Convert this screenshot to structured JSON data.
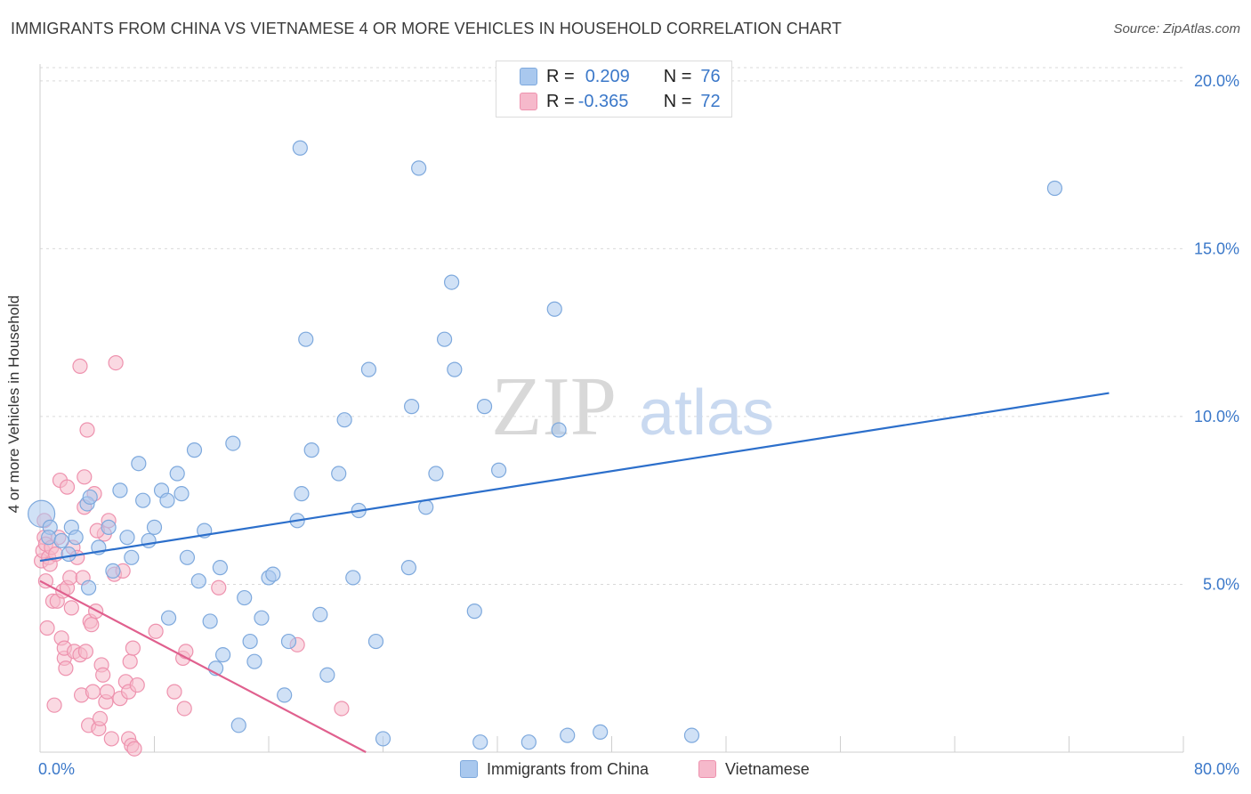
{
  "title": "IMMIGRANTS FROM CHINA VS VIETNAMESE 4 OR MORE VEHICLES IN HOUSEHOLD CORRELATION CHART",
  "source": "Source: ZipAtlas.com",
  "watermark": {
    "zip": "ZIP",
    "atlas": "atlas"
  },
  "legend": {
    "rows": [
      {
        "r_label": "R =",
        "r_value": "0.209",
        "n_label": "N =",
        "n_value": "76"
      },
      {
        "r_label": "R =",
        "r_value": "-0.365",
        "n_label": "N =",
        "n_value": "72"
      }
    ]
  },
  "colors": {
    "china_fill": "#a9c8ee",
    "china_stroke": "#7ea9dd",
    "china_line": "#2c6fcb",
    "viet_fill": "#f6b9cb",
    "viet_stroke": "#ee92ae",
    "viet_line": "#e0608e",
    "axis_text": "#3b78c9",
    "grid": "#d9d9d9"
  },
  "chart_data": {
    "type": "scatter",
    "title": "IMMIGRANTS FROM CHINA VS VIETNAMESE 4 OR MORE VEHICLES IN HOUSEHOLD CORRELATION CHART",
    "xlabel": "",
    "ylabel": "4 or more Vehicles in Household",
    "xlim": [
      0,
      80
    ],
    "ylim": [
      0,
      20.5
    ],
    "x_tick_labels": [
      "0.0%",
      "80.0%"
    ],
    "y_tick_labels": [
      "5.0%",
      "10.0%",
      "15.0%",
      "20.0%"
    ],
    "y_ticks": [
      5,
      10,
      15,
      20
    ],
    "grid": true,
    "legend_position": "bottom",
    "series": [
      {
        "name": "Immigrants from China",
        "stats": {
          "R": 0.209,
          "N": 76
        },
        "trend": {
          "x": [
            0,
            74.8
          ],
          "y": [
            5.7,
            10.7
          ]
        },
        "points": [
          [
            0.1,
            7.1
          ],
          [
            0.7,
            6.7
          ],
          [
            0.6,
            6.4
          ],
          [
            1.5,
            6.3
          ],
          [
            2.2,
            6.7
          ],
          [
            2.5,
            6.4
          ],
          [
            2.0,
            5.9
          ],
          [
            3.3,
            7.4
          ],
          [
            3.5,
            7.6
          ],
          [
            4.1,
            6.1
          ],
          [
            4.8,
            6.7
          ],
          [
            5.1,
            5.4
          ],
          [
            3.4,
            4.9
          ],
          [
            5.6,
            7.8
          ],
          [
            6.1,
            6.4
          ],
          [
            6.4,
            5.8
          ],
          [
            6.9,
            8.6
          ],
          [
            7.2,
            7.5
          ],
          [
            7.6,
            6.3
          ],
          [
            8.0,
            6.7
          ],
          [
            8.5,
            7.8
          ],
          [
            8.9,
            7.5
          ],
          [
            9.6,
            8.3
          ],
          [
            9.0,
            4.0
          ],
          [
            9.9,
            7.7
          ],
          [
            10.3,
            5.8
          ],
          [
            10.8,
            9.0
          ],
          [
            11.1,
            5.1
          ],
          [
            11.5,
            6.6
          ],
          [
            11.9,
            3.9
          ],
          [
            12.3,
            2.5
          ],
          [
            12.6,
            5.5
          ],
          [
            12.8,
            2.9
          ],
          [
            13.5,
            9.2
          ],
          [
            13.9,
            0.8
          ],
          [
            14.3,
            4.6
          ],
          [
            14.7,
            3.3
          ],
          [
            15.0,
            2.7
          ],
          [
            15.5,
            4.0
          ],
          [
            16.0,
            5.2
          ],
          [
            16.3,
            5.3
          ],
          [
            17.1,
            1.7
          ],
          [
            17.4,
            3.3
          ],
          [
            18.0,
            6.9
          ],
          [
            18.3,
            7.7
          ],
          [
            18.6,
            12.3
          ],
          [
            19.0,
            9.0
          ],
          [
            19.6,
            4.1
          ],
          [
            20.1,
            2.3
          ],
          [
            20.9,
            8.3
          ],
          [
            21.3,
            9.9
          ],
          [
            21.9,
            5.2
          ],
          [
            22.3,
            7.2
          ],
          [
            23.0,
            11.4
          ],
          [
            23.5,
            3.3
          ],
          [
            24.0,
            0.4
          ],
          [
            25.8,
            5.5
          ],
          [
            26.0,
            10.3
          ],
          [
            27.0,
            7.3
          ],
          [
            27.7,
            8.3
          ],
          [
            28.3,
            12.3
          ],
          [
            28.8,
            14.0
          ],
          [
            29.0,
            11.4
          ],
          [
            30.4,
            4.2
          ],
          [
            30.8,
            0.3
          ],
          [
            31.1,
            10.3
          ],
          [
            32.1,
            8.4
          ],
          [
            34.2,
            0.3
          ],
          [
            36.0,
            13.2
          ],
          [
            36.3,
            9.6
          ],
          [
            36.9,
            0.5
          ],
          [
            39.2,
            0.6
          ],
          [
            45.6,
            0.5
          ],
          [
            71.0,
            16.8
          ],
          [
            18.2,
            18.0
          ],
          [
            26.5,
            17.4
          ]
        ]
      },
      {
        "name": "Vietnamese",
        "stats": {
          "R": -0.365,
          "N": 72
        },
        "trend": {
          "x": [
            0,
            22.8
          ],
          "y": [
            5.1,
            0
          ]
        },
        "points": [
          [
            0.1,
            5.7
          ],
          [
            0.2,
            6.0
          ],
          [
            0.3,
            6.4
          ],
          [
            0.4,
            5.1
          ],
          [
            0.4,
            6.2
          ],
          [
            0.6,
            5.8
          ],
          [
            0.7,
            5.6
          ],
          [
            0.8,
            6.1
          ],
          [
            0.9,
            4.5
          ],
          [
            1.0,
            1.4
          ],
          [
            1.1,
            5.9
          ],
          [
            1.2,
            4.5
          ],
          [
            1.3,
            6.4
          ],
          [
            1.5,
            3.4
          ],
          [
            1.6,
            4.8
          ],
          [
            1.7,
            2.8
          ],
          [
            1.7,
            3.1
          ],
          [
            1.8,
            2.5
          ],
          [
            1.9,
            4.9
          ],
          [
            2.1,
            5.2
          ],
          [
            2.3,
            6.1
          ],
          [
            2.4,
            3.0
          ],
          [
            2.6,
            5.8
          ],
          [
            2.8,
            2.9
          ],
          [
            2.8,
            11.5
          ],
          [
            2.9,
            1.7
          ],
          [
            3.1,
            7.3
          ],
          [
            3.1,
            8.2
          ],
          [
            3.2,
            3.0
          ],
          [
            3.3,
            9.6
          ],
          [
            3.4,
            0.8
          ],
          [
            3.5,
            3.9
          ],
          [
            3.6,
            3.8
          ],
          [
            3.7,
            1.8
          ],
          [
            3.8,
            7.7
          ],
          [
            3.9,
            4.2
          ],
          [
            4.1,
            0.7
          ],
          [
            4.2,
            1.0
          ],
          [
            4.3,
            2.6
          ],
          [
            4.4,
            2.3
          ],
          [
            4.5,
            6.5
          ],
          [
            4.6,
            1.5
          ],
          [
            4.7,
            1.8
          ],
          [
            4.8,
            6.9
          ],
          [
            5.0,
            0.4
          ],
          [
            5.2,
            5.3
          ],
          [
            5.3,
            11.6
          ],
          [
            5.6,
            1.6
          ],
          [
            5.8,
            5.4
          ],
          [
            6.0,
            2.1
          ],
          [
            6.2,
            1.8
          ],
          [
            6.2,
            0.4
          ],
          [
            6.3,
            2.7
          ],
          [
            6.4,
            0.2
          ],
          [
            6.5,
            3.1
          ],
          [
            6.6,
            0.1
          ],
          [
            6.8,
            2.0
          ],
          [
            8.1,
            3.6
          ],
          [
            9.4,
            1.8
          ],
          [
            10.0,
            2.8
          ],
          [
            10.1,
            1.3
          ],
          [
            10.2,
            3.0
          ],
          [
            12.5,
            4.9
          ],
          [
            18.0,
            3.2
          ],
          [
            21.1,
            1.3
          ],
          [
            1.4,
            8.1
          ],
          [
            2.2,
            4.3
          ],
          [
            3.0,
            5.2
          ],
          [
            0.5,
            3.7
          ],
          [
            1.9,
            7.9
          ],
          [
            0.3,
            6.9
          ],
          [
            4.0,
            6.6
          ]
        ]
      }
    ]
  },
  "bottom_legend": [
    {
      "label": "Immigrants from China"
    },
    {
      "label": "Vietnamese"
    }
  ]
}
